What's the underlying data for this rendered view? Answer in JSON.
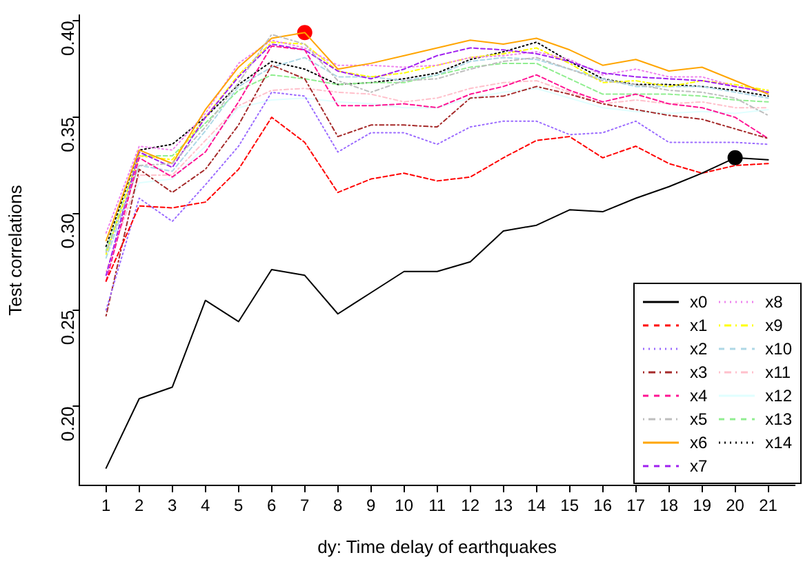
{
  "chart_data": {
    "type": "line",
    "xlabel": "dy: Time delay of earthquakes",
    "ylabel": "Test correlations",
    "x": [
      1,
      2,
      3,
      4,
      5,
      6,
      7,
      8,
      9,
      10,
      11,
      12,
      13,
      14,
      15,
      16,
      17,
      18,
      19,
      20,
      21
    ],
    "xlim": [
      0.2,
      21.8
    ],
    "xticks": [
      1,
      2,
      3,
      4,
      5,
      6,
      7,
      8,
      9,
      10,
      11,
      12,
      13,
      14,
      15,
      16,
      17,
      18,
      19,
      20,
      21
    ],
    "ylim": [
      0.159,
      0.403
    ],
    "yticks": [
      {
        "value": 0.2,
        "label": "0.20"
      },
      {
        "value": 0.25,
        "label": "0.25"
      },
      {
        "value": 0.3,
        "label": "0.30"
      },
      {
        "value": 0.35,
        "label": "0.35"
      },
      {
        "value": 0.4,
        "label": "0.40"
      }
    ],
    "grid": false,
    "legend": "bottom right",
    "marker": "none",
    "series": [
      {
        "name": "x0",
        "color": "#000000",
        "line_style": "solid",
        "values": [
          0.168,
          0.204,
          0.21,
          0.255,
          0.244,
          0.271,
          0.268,
          0.248,
          0.259,
          0.27,
          0.27,
          0.275,
          0.291,
          0.294,
          0.302,
          0.301,
          0.308,
          0.314,
          0.321,
          0.329,
          0.328
        ]
      },
      {
        "name": "x1",
        "color": "#ff0000",
        "line_style": "dashed",
        "values": [
          0.265,
          0.304,
          0.303,
          0.306,
          0.323,
          0.35,
          0.337,
          0.311,
          0.318,
          0.321,
          0.317,
          0.319,
          0.329,
          0.338,
          0.34,
          0.329,
          0.335,
          0.326,
          0.321,
          0.325,
          0.326
        ]
      },
      {
        "name": "x2",
        "color": "#9b6bff",
        "line_style": "dotted",
        "values": [
          0.25,
          0.308,
          0.296,
          0.315,
          0.335,
          0.363,
          0.361,
          0.332,
          0.342,
          0.342,
          0.336,
          0.345,
          0.348,
          0.348,
          0.341,
          0.342,
          0.348,
          0.337,
          0.337,
          0.337,
          0.336
        ]
      },
      {
        "name": "x3",
        "color": "#a52a2a",
        "line_style": "dashdot",
        "values": [
          0.247,
          0.323,
          0.311,
          0.323,
          0.346,
          0.377,
          0.37,
          0.34,
          0.346,
          0.346,
          0.345,
          0.36,
          0.361,
          0.366,
          0.362,
          0.357,
          0.354,
          0.351,
          0.349,
          0.344,
          0.339
        ]
      },
      {
        "name": "x4",
        "color": "#ff1493",
        "line_style": "dashed",
        "values": [
          0.265,
          0.329,
          0.319,
          0.332,
          0.358,
          0.387,
          0.385,
          0.356,
          0.356,
          0.357,
          0.355,
          0.362,
          0.366,
          0.372,
          0.364,
          0.358,
          0.362,
          0.357,
          0.355,
          0.35,
          0.339
        ]
      },
      {
        "name": "x5",
        "color": "#bebebe",
        "line_style": "dashdot",
        "values": [
          0.28,
          0.325,
          0.326,
          0.345,
          0.368,
          0.393,
          0.388,
          0.369,
          0.363,
          0.369,
          0.37,
          0.375,
          0.379,
          0.381,
          0.375,
          0.369,
          0.367,
          0.364,
          0.363,
          0.36,
          0.351
        ]
      },
      {
        "name": "x6",
        "color": "#ffa500",
        "line_style": "solid",
        "values": [
          0.286,
          0.333,
          0.326,
          0.354,
          0.376,
          0.391,
          0.394,
          0.375,
          0.378,
          0.382,
          0.386,
          0.39,
          0.388,
          0.391,
          0.385,
          0.377,
          0.38,
          0.374,
          0.376,
          0.369,
          0.362
        ]
      },
      {
        "name": "x7",
        "color": "#a020f0",
        "line_style": "dashed",
        "values": [
          0.268,
          0.332,
          0.324,
          0.35,
          0.371,
          0.388,
          0.385,
          0.374,
          0.37,
          0.375,
          0.382,
          0.386,
          0.385,
          0.383,
          0.379,
          0.373,
          0.371,
          0.37,
          0.369,
          0.366,
          0.363
        ]
      },
      {
        "name": "x8",
        "color": "#ee82ee",
        "line_style": "dotted",
        "values": [
          0.29,
          0.335,
          0.333,
          0.352,
          0.378,
          0.39,
          0.386,
          0.377,
          0.377,
          0.376,
          0.377,
          0.381,
          0.382,
          0.384,
          0.38,
          0.372,
          0.375,
          0.371,
          0.371,
          0.366,
          0.363
        ]
      },
      {
        "name": "x9",
        "color": "#ffff00",
        "line_style": "dashdot",
        "values": [
          0.279,
          0.33,
          0.328,
          0.35,
          0.372,
          0.389,
          0.388,
          0.374,
          0.371,
          0.373,
          0.377,
          0.381,
          0.383,
          0.386,
          0.378,
          0.368,
          0.369,
          0.366,
          0.369,
          0.367,
          0.364
        ]
      },
      {
        "name": "x10",
        "color": "#add8e6",
        "line_style": "dashed",
        "values": [
          0.277,
          0.325,
          0.322,
          0.343,
          0.366,
          0.376,
          0.381,
          0.371,
          0.371,
          0.369,
          0.372,
          0.379,
          0.381,
          0.38,
          0.375,
          0.37,
          0.366,
          0.366,
          0.366,
          0.363,
          0.36
        ]
      },
      {
        "name": "x11",
        "color": "#ffc0cb",
        "line_style": "dashdot",
        "values": [
          0.27,
          0.32,
          0.32,
          0.338,
          0.356,
          0.364,
          0.365,
          0.363,
          0.362,
          0.358,
          0.36,
          0.365,
          0.368,
          0.369,
          0.363,
          0.357,
          0.359,
          0.357,
          0.358,
          0.355,
          0.355
        ]
      },
      {
        "name": "x12",
        "color": "#e0ffff",
        "line_style": "solid",
        "values": [
          0.278,
          0.316,
          0.318,
          0.335,
          0.355,
          0.359,
          0.36,
          0.358,
          0.357,
          0.355,
          0.355,
          0.36,
          0.363,
          0.365,
          0.36,
          0.355,
          0.353,
          0.352,
          0.353,
          0.352,
          0.354
        ]
      },
      {
        "name": "x13",
        "color": "#90ee90",
        "line_style": "dashed",
        "values": [
          0.281,
          0.33,
          0.33,
          0.347,
          0.364,
          0.372,
          0.37,
          0.367,
          0.368,
          0.368,
          0.372,
          0.376,
          0.378,
          0.378,
          0.37,
          0.362,
          0.362,
          0.362,
          0.361,
          0.359,
          0.358
        ]
      },
      {
        "name": "x14",
        "color": "#000000",
        "line_style": "dotted",
        "values": [
          0.283,
          0.333,
          0.336,
          0.35,
          0.367,
          0.379,
          0.375,
          0.367,
          0.368,
          0.37,
          0.373,
          0.38,
          0.384,
          0.389,
          0.379,
          0.37,
          0.367,
          0.367,
          0.366,
          0.364,
          0.361
        ]
      },
      {
        "type": "scatter",
        "marker": "circle",
        "color": "#ff0000",
        "x": [
          7
        ],
        "values": [
          0.394
        ]
      },
      {
        "type": "scatter",
        "marker": "circle",
        "color": "#000000",
        "x": [
          20
        ],
        "values": [
          0.329
        ]
      }
    ]
  }
}
